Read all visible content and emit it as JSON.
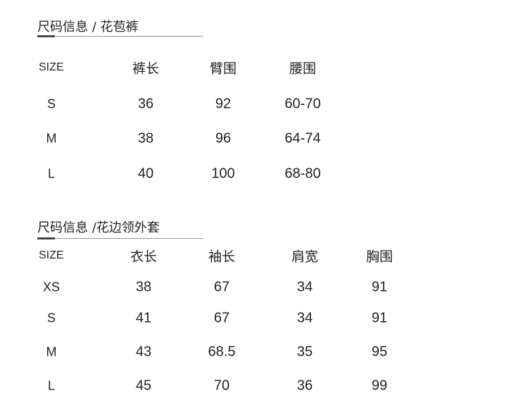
{
  "tables": [
    {
      "title": "尺码信息 / 花苞裤",
      "headers": [
        "SIZE",
        "裤长",
        "臂围",
        "腰围"
      ],
      "rows": [
        [
          "S",
          "36",
          "92",
          "60-70"
        ],
        [
          "M",
          "38",
          "96",
          "64-74"
        ],
        [
          "L",
          "40",
          "100",
          "68-80"
        ]
      ]
    },
    {
      "title": "尺码信息 /花边领外套",
      "headers": [
        "SIZE",
        "衣长",
        "袖长",
        "肩宽",
        "胸围"
      ],
      "rows": [
        [
          "XS",
          "38",
          "67",
          "34",
          "91"
        ],
        [
          "S",
          "41",
          "67",
          "34",
          "91"
        ],
        [
          "M",
          "43",
          "68.5",
          "35",
          "95"
        ],
        [
          "L",
          "45",
          "70",
          "36",
          "99"
        ]
      ]
    }
  ]
}
